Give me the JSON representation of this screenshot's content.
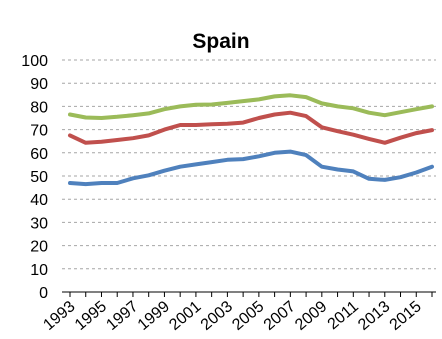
{
  "chart_data": {
    "type": "line",
    "title": "Spain",
    "xlabel": "",
    "ylabel": "",
    "x": [
      1993,
      1994,
      1995,
      1996,
      1997,
      1998,
      1999,
      2000,
      2001,
      2002,
      2003,
      2004,
      2005,
      2006,
      2007,
      2008,
      2009,
      2010,
      2011,
      2012,
      2013,
      2014,
      2015,
      2016
    ],
    "x_tick_labels": [
      "1993",
      "1995",
      "1997",
      "1999",
      "2001",
      "2003",
      "2005",
      "2007",
      "2009",
      "2011",
      "2013",
      "2015"
    ],
    "ylim": [
      0,
      100
    ],
    "y_tick_labels": [
      "0",
      "10",
      "20",
      "30",
      "40",
      "50",
      "60",
      "70",
      "80",
      "90",
      "100"
    ],
    "grid": "horizontal-dashed",
    "legend": "none",
    "series": [
      {
        "color": "#9BBB59",
        "values": [
          76.5,
          75.2,
          75.0,
          75.5,
          76.2,
          77.0,
          78.8,
          80.0,
          80.7,
          80.8,
          81.5,
          82.3,
          83.0,
          84.3,
          84.8,
          84.0,
          81.3,
          80.0,
          79.2,
          77.3,
          76.2,
          77.5,
          78.8,
          80.0
        ]
      },
      {
        "color": "#C0504D",
        "values": [
          67.5,
          64.3,
          64.8,
          65.5,
          66.3,
          67.5,
          70.0,
          72.0,
          72.0,
          72.3,
          72.5,
          73.0,
          75.0,
          76.5,
          77.3,
          75.8,
          71.0,
          69.3,
          67.8,
          66.0,
          64.3,
          66.5,
          68.5,
          69.8
        ]
      },
      {
        "color": "#4F81BD",
        "values": [
          47.0,
          46.5,
          47.0,
          47.0,
          49.0,
          50.3,
          52.3,
          54.0,
          55.0,
          56.0,
          57.0,
          57.3,
          58.5,
          60.0,
          60.5,
          59.0,
          54.0,
          52.8,
          52.0,
          48.8,
          48.3,
          49.5,
          51.5,
          54.0
        ]
      }
    ]
  }
}
